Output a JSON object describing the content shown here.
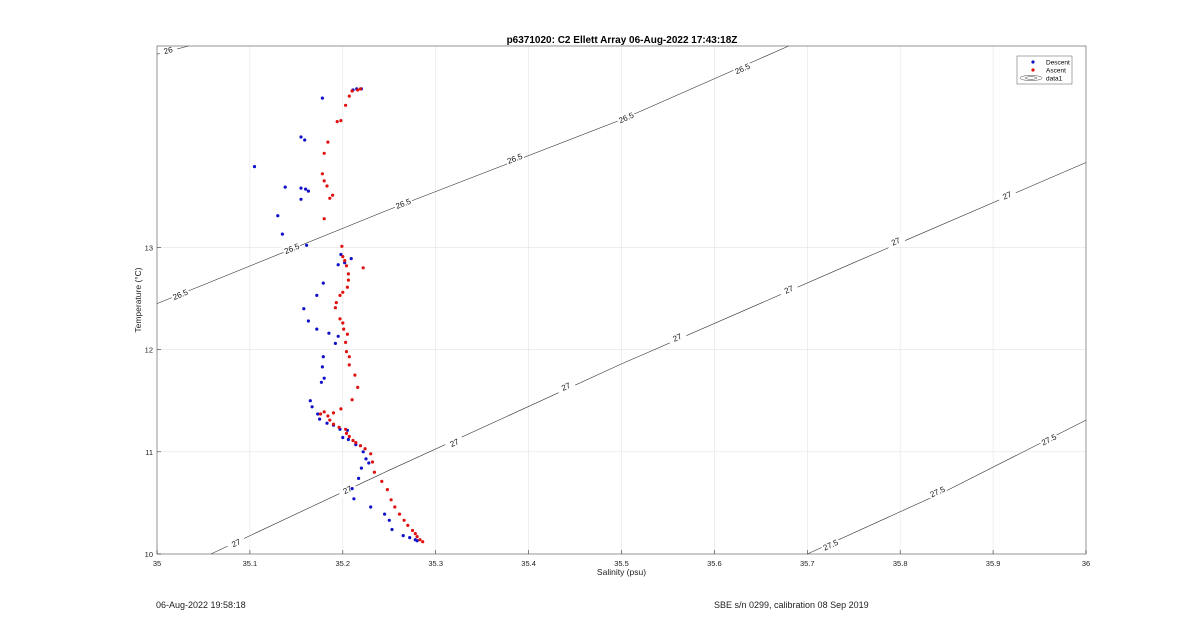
{
  "footer": {
    "left": "06-Aug-2022 19:58:18",
    "right": "SBE s/n 0299, calibration 08 Sep 2019"
  },
  "chart_data": {
    "type": "scatter",
    "title": "p6371020: C2 Ellett Array 06-Aug-2022 17:43:18Z",
    "xlabel": "Salinity (psu)",
    "ylabel": "Temperature (°C)",
    "xlim": [
      35,
      36
    ],
    "ylim": [
      10,
      14.97
    ],
    "x_ticks": [
      35,
      35.1,
      35.2,
      35.3,
      35.4,
      35.5,
      35.6,
      35.7,
      35.8,
      35.9,
      36
    ],
    "x_tick_labels": [
      "35",
      "35.1",
      "35.2",
      "35.3",
      "35.4",
      "35.5",
      "35.6",
      "35.7",
      "35.8",
      "35.9",
      "36"
    ],
    "y_ticks": [
      10,
      11,
      12,
      13
    ],
    "y_tick_labels": [
      "10",
      "11",
      "12",
      "13"
    ],
    "grid": true,
    "legend_position": "top-right",
    "legend": [
      "Descent",
      "Ascent",
      "data1"
    ],
    "colors": {
      "descent": "#1010c8",
      "ascent": "#e01010",
      "contour": "#333333",
      "grid": "#e4e4e4"
    },
    "series": [
      {
        "name": "Descent",
        "marker": "dot",
        "color": "#1010c8",
        "points": [
          [
            35.22,
            14.55
          ],
          [
            35.215,
            14.55
          ],
          [
            35.211,
            14.54
          ],
          [
            35.178,
            14.46
          ],
          [
            35.155,
            14.08
          ],
          [
            35.159,
            14.05
          ],
          [
            35.105,
            13.79
          ],
          [
            35.138,
            13.59
          ],
          [
            35.155,
            13.58
          ],
          [
            35.16,
            13.57
          ],
          [
            35.163,
            13.55
          ],
          [
            35.155,
            13.47
          ],
          [
            35.13,
            13.31
          ],
          [
            35.135,
            13.13
          ],
          [
            35.161,
            13.02
          ],
          [
            35.198,
            12.93
          ],
          [
            35.209,
            12.89
          ],
          [
            35.202,
            12.85
          ],
          [
            35.195,
            12.83
          ],
          [
            35.179,
            12.65
          ],
          [
            35.172,
            12.53
          ],
          [
            35.158,
            12.4
          ],
          [
            35.163,
            12.28
          ],
          [
            35.172,
            12.2
          ],
          [
            35.185,
            12.16
          ],
          [
            35.195,
            12.13
          ],
          [
            35.192,
            12.06
          ],
          [
            35.179,
            11.93
          ],
          [
            35.178,
            11.83
          ],
          [
            35.177,
            11.68
          ],
          [
            35.18,
            11.72
          ],
          [
            35.165,
            11.5
          ],
          [
            35.167,
            11.44
          ],
          [
            35.173,
            11.37
          ],
          [
            35.175,
            11.32
          ],
          [
            35.183,
            11.28
          ],
          [
            35.19,
            11.26
          ],
          [
            35.197,
            11.22
          ],
          [
            35.205,
            11.21
          ],
          [
            35.2,
            11.14
          ],
          [
            35.206,
            11.12
          ],
          [
            35.214,
            11.07
          ],
          [
            35.222,
            11.0
          ],
          [
            35.225,
            10.93
          ],
          [
            35.228,
            10.89
          ],
          [
            35.22,
            10.84
          ],
          [
            35.217,
            10.74
          ],
          [
            35.21,
            10.64
          ],
          [
            35.212,
            10.54
          ],
          [
            35.23,
            10.46
          ],
          [
            35.245,
            10.39
          ],
          [
            35.25,
            10.33
          ],
          [
            35.253,
            10.24
          ],
          [
            35.265,
            10.18
          ],
          [
            35.272,
            10.16
          ],
          [
            35.278,
            10.14
          ],
          [
            35.28,
            10.13
          ]
        ]
      },
      {
        "name": "Ascent",
        "marker": "dot",
        "color": "#e01010",
        "points": [
          [
            35.286,
            10.12
          ],
          [
            35.283,
            10.14
          ],
          [
            35.28,
            10.17
          ],
          [
            35.278,
            10.2
          ],
          [
            35.275,
            10.23
          ],
          [
            35.27,
            10.28
          ],
          [
            35.266,
            10.33
          ],
          [
            35.261,
            10.39
          ],
          [
            35.256,
            10.46
          ],
          [
            35.252,
            10.53
          ],
          [
            35.248,
            10.63
          ],
          [
            35.242,
            10.71
          ],
          [
            35.234,
            10.8
          ],
          [
            35.232,
            10.9
          ],
          [
            35.23,
            10.98
          ],
          [
            35.224,
            11.03
          ],
          [
            35.219,
            11.06
          ],
          [
            35.214,
            11.09
          ],
          [
            35.211,
            11.11
          ],
          [
            35.207,
            11.15
          ],
          [
            35.204,
            11.18
          ],
          [
            35.203,
            11.22
          ],
          [
            35.196,
            11.24
          ],
          [
            35.19,
            11.27
          ],
          [
            35.186,
            11.31
          ],
          [
            35.184,
            11.35
          ],
          [
            35.19,
            11.38
          ],
          [
            35.18,
            11.39
          ],
          [
            35.176,
            11.37
          ],
          [
            35.198,
            11.42
          ],
          [
            35.21,
            11.51
          ],
          [
            35.216,
            11.63
          ],
          [
            35.213,
            11.75
          ],
          [
            35.207,
            11.85
          ],
          [
            35.207,
            11.93
          ],
          [
            35.204,
            11.98
          ],
          [
            35.203,
            12.07
          ],
          [
            35.205,
            12.15
          ],
          [
            35.201,
            12.2
          ],
          [
            35.2,
            12.26
          ],
          [
            35.197,
            12.3
          ],
          [
            35.192,
            12.41
          ],
          [
            35.193,
            12.46
          ],
          [
            35.197,
            12.53
          ],
          [
            35.2,
            12.56
          ],
          [
            35.205,
            12.61
          ],
          [
            35.206,
            12.68
          ],
          [
            35.206,
            12.74
          ],
          [
            35.204,
            12.82
          ],
          [
            35.222,
            12.8
          ],
          [
            35.202,
            12.87
          ],
          [
            35.2,
            12.91
          ],
          [
            35.199,
            13.01
          ],
          [
            35.18,
            13.28
          ],
          [
            35.186,
            13.48
          ],
          [
            35.189,
            13.51
          ],
          [
            35.183,
            13.6
          ],
          [
            35.18,
            13.65
          ],
          [
            35.178,
            13.72
          ],
          [
            35.18,
            13.92
          ],
          [
            35.184,
            14.03
          ],
          [
            35.194,
            14.23
          ],
          [
            35.198,
            14.24
          ],
          [
            35.203,
            14.39
          ],
          [
            35.207,
            14.48
          ],
          [
            35.21,
            14.53
          ],
          [
            35.216,
            14.54
          ],
          [
            35.219,
            14.55
          ]
        ]
      }
    ],
    "contours": [
      {
        "label": "26",
        "points": [
          [
            35.0,
            14.89
          ],
          [
            35.034,
            14.97
          ]
        ],
        "label_positions": [
          [
            35.012,
            14.93
          ]
        ]
      },
      {
        "label": "26.5",
        "points": [
          [
            35.0,
            12.45
          ],
          [
            35.25,
            13.37
          ],
          [
            35.5,
            14.25
          ],
          [
            35.68,
            14.97
          ]
        ],
        "label_positions": [
          [
            35.025,
            12.54
          ],
          [
            35.145,
            12.99
          ],
          [
            35.265,
            13.43
          ],
          [
            35.385,
            13.87
          ],
          [
            35.505,
            14.27
          ],
          [
            35.63,
            14.75
          ]
        ]
      },
      {
        "label": "27",
        "points": [
          [
            35.058,
            10.0
          ],
          [
            35.25,
            10.82
          ],
          [
            35.5,
            11.86
          ],
          [
            35.75,
            12.85
          ],
          [
            36.0,
            13.83
          ]
        ],
        "label_positions": [
          [
            35.085,
            10.11
          ],
          [
            35.205,
            10.63
          ],
          [
            35.32,
            11.09
          ],
          [
            35.44,
            11.64
          ],
          [
            35.56,
            12.12
          ],
          [
            35.68,
            12.59
          ],
          [
            35.795,
            13.06
          ],
          [
            35.915,
            13.51
          ]
        ]
      },
      {
        "label": "27.5",
        "points": [
          [
            35.7,
            10.0
          ],
          [
            35.85,
            10.62
          ],
          [
            36.0,
            11.31
          ]
        ],
        "label_positions": [
          [
            35.725,
            10.09
          ],
          [
            35.84,
            10.61
          ],
          [
            35.96,
            11.12
          ]
        ]
      }
    ]
  }
}
